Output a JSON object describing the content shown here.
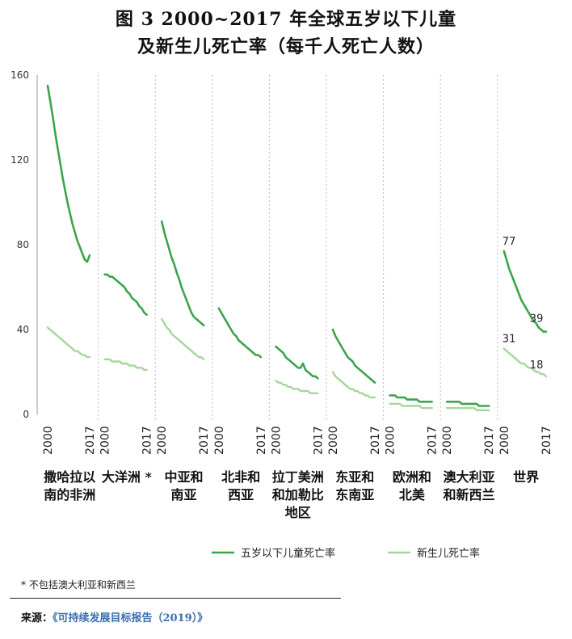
{
  "title_line1": "图 3  2000~2017 年全球五岁以下儿童",
  "title_line2": "及新生儿死亡率（每千人死亡人数）",
  "footnote": "* 不包括澳大利亚和新西兰",
  "source_prefix": "来源：",
  "source_title": "《可持续发展目标报告（2019）》",
  "colors": {
    "under5": "#3aa54a",
    "neonatal": "#a5d69c",
    "grid": "#bbbbbb"
  },
  "chart_data": {
    "type": "line",
    "ylim": [
      0,
      160
    ],
    "yticks": [
      0,
      40,
      80,
      120,
      160
    ],
    "x": [
      2000,
      2017
    ],
    "legend": {
      "placement": "bottom"
    },
    "series": [
      {
        "name": "五岁以下儿童死亡率",
        "key": "under5"
      },
      {
        "name": "新生儿死亡率",
        "key": "neonatal"
      }
    ],
    "panels": [
      {
        "region": [
          "撒哈拉以",
          "南的非洲"
        ],
        "under5": [
          155,
          148,
          141,
          133,
          126,
          119,
          112,
          106,
          100,
          95,
          90,
          86,
          82,
          79,
          76,
          73,
          72,
          75
        ],
        "neonatal": [
          41,
          40,
          39,
          38,
          37,
          36,
          35,
          34,
          33,
          32,
          31,
          30,
          30,
          29,
          28,
          28,
          27,
          27
        ]
      },
      {
        "region": [
          "大洋洲 *"
        ],
        "under5": [
          66,
          66,
          65,
          65,
          64,
          63,
          62,
          61,
          60,
          58,
          57,
          55,
          54,
          53,
          51,
          50,
          48,
          47
        ],
        "neonatal": [
          26,
          26,
          26,
          25,
          25,
          25,
          25,
          24,
          24,
          24,
          23,
          23,
          23,
          22,
          22,
          22,
          21,
          21
        ]
      },
      {
        "region": [
          "中亚和",
          "南亚"
        ],
        "under5": [
          91,
          86,
          82,
          78,
          74,
          71,
          67,
          64,
          60,
          57,
          54,
          51,
          48,
          46,
          45,
          44,
          43,
          42
        ],
        "neonatal": [
          45,
          43,
          41,
          40,
          38,
          37,
          36,
          35,
          34,
          33,
          32,
          31,
          30,
          29,
          28,
          27,
          27,
          26
        ]
      },
      {
        "region": [
          "北非和",
          "西亚"
        ],
        "under5": [
          50,
          48,
          46,
          44,
          42,
          40,
          38,
          37,
          35,
          34,
          33,
          32,
          31,
          30,
          29,
          28,
          28,
          27
        ]
      },
      {
        "region": [
          "拉丁美洲",
          "和加勒比",
          "地区"
        ],
        "under5": [
          32,
          31,
          30,
          29,
          27,
          26,
          25,
          24,
          23,
          22,
          22,
          24,
          21,
          20,
          19,
          18,
          18,
          17
        ],
        "neonatal": [
          16,
          15,
          15,
          14,
          14,
          13,
          13,
          12,
          12,
          12,
          11,
          11,
          11,
          11,
          10,
          10,
          10,
          10
        ]
      },
      {
        "region": [
          "东亚和",
          "东南亚"
        ],
        "under5": [
          40,
          37,
          35,
          33,
          31,
          29,
          27,
          26,
          25,
          23,
          22,
          21,
          20,
          19,
          18,
          17,
          16,
          15
        ],
        "neonatal": [
          20,
          18,
          17,
          16,
          15,
          14,
          13,
          12,
          12,
          11,
          11,
          10,
          10,
          9,
          9,
          8,
          8,
          8
        ]
      },
      {
        "region": [
          "欧洲和",
          "北美"
        ],
        "under5": [
          9,
          9,
          9,
          8,
          8,
          8,
          8,
          7,
          7,
          7,
          7,
          7,
          6,
          6,
          6,
          6,
          6,
          6
        ],
        "neonatal": [
          5,
          5,
          5,
          5,
          5,
          4,
          4,
          4,
          4,
          4,
          4,
          4,
          4,
          3,
          3,
          3,
          3,
          3
        ]
      },
      {
        "region": [
          "澳大利亚",
          "和新西兰"
        ],
        "under5": [
          6,
          6,
          6,
          6,
          6,
          6,
          5,
          5,
          5,
          5,
          5,
          5,
          5,
          4,
          4,
          4,
          4,
          4
        ],
        "neonatal": [
          3,
          3,
          3,
          3,
          3,
          3,
          3,
          3,
          3,
          3,
          3,
          3,
          2,
          2,
          2,
          2,
          2,
          2
        ]
      },
      {
        "region": [
          "世界"
        ],
        "under5": [
          77,
          73,
          69,
          66,
          63,
          60,
          57,
          54,
          52,
          50,
          48,
          46,
          44,
          43,
          41,
          40,
          39,
          39
        ],
        "neonatal": [
          31,
          30,
          29,
          28,
          27,
          26,
          25,
          24,
          24,
          23,
          22,
          22,
          21,
          20,
          20,
          19,
          19,
          18
        ],
        "labels": {
          "under5_start": "77",
          "under5_end": "39",
          "neonatal_start": "31",
          "neonatal_end": "18"
        }
      }
    ]
  }
}
